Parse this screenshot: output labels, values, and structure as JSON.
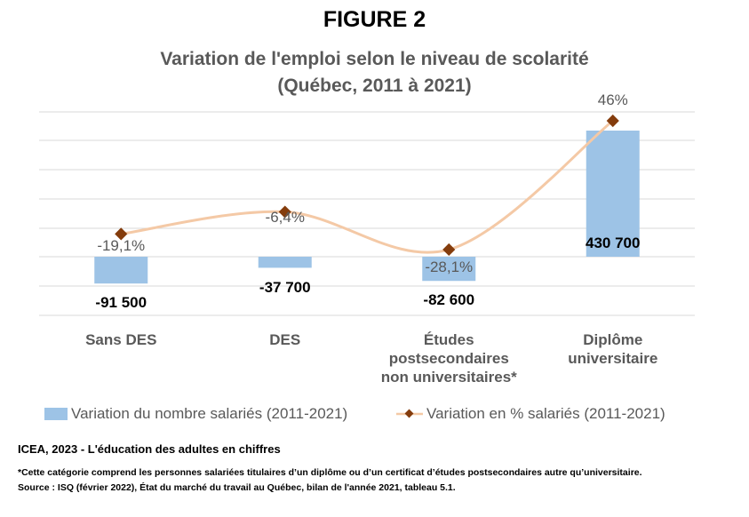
{
  "figure_label": "FIGURE 2",
  "title_line1": "Variation de l'emploi selon le niveau de scolarité",
  "title_line2": "(Québec, 2011 à 2021)",
  "chart_data": {
    "type": "bar",
    "categories": [
      [
        "Sans DES"
      ],
      [
        "DES"
      ],
      [
        "Études",
        "postsecondaires",
        "non universitaires*"
      ],
      [
        "Diplôme",
        "universitaire"
      ]
    ],
    "series": [
      {
        "name": "Variation du nombre salariés (2011-2021)",
        "kind": "bar",
        "values": [
          -91500,
          -37700,
          -82600,
          430700
        ],
        "labels": [
          "-91 500",
          "-37 700",
          "-82 600",
          "430 700"
        ],
        "color": "#9DC3E6"
      },
      {
        "name": "Variation en % salariés (2011-2021)",
        "kind": "line",
        "values": [
          -19.1,
          -6.4,
          -28.1,
          46
        ],
        "labels": [
          "-19,1%",
          "-6,4%",
          "-28,1%",
          "46%"
        ],
        "color": "#843C0C",
        "line_color": "#F4C9A6"
      }
    ],
    "grid": true,
    "legend_position": "bottom"
  },
  "footer_source": "ICEA, 2023 - L'éducation des adultes en chiffres",
  "footnote_1": "*Cette catégorie comprend les personnes salariées titulaires d’un diplôme ou d’un certificat d’études postsecondaires autre qu’universitaire.",
  "footnote_2": "Source : ISQ (février 2022), État du marché du travail au Québec, bilan de l'année 2021, tableau 5.1."
}
